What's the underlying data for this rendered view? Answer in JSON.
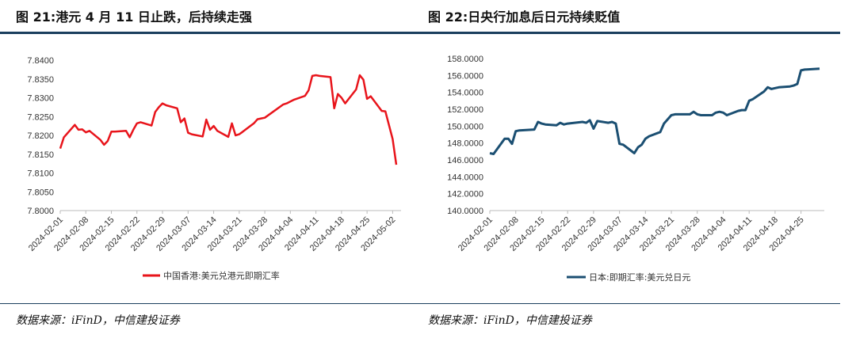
{
  "charts_titles": {
    "left": "图 21:港元 4 月 11 日止跌，后持续走强",
    "right": "图 22:日央行加息后日元持续贬值"
  },
  "sources": {
    "left": "数据来源：iFinD，中信建投证券",
    "right": "数据来源：iFinD，中信建投证券"
  },
  "colors": {
    "hkd": "#e8141b",
    "jpy": "#1b4f72",
    "rule": "#1b3f5e"
  },
  "chart_data": [
    {
      "type": "line",
      "title": "图 21:港元 4 月 11 日止跌，后持续走强",
      "ylim": [
        7.8,
        7.84
      ],
      "yticks": [
        "7.8000",
        "7.8050",
        "7.8100",
        "7.8150",
        "7.8200",
        "7.8250",
        "7.8300",
        "7.8350",
        "7.8400"
      ],
      "xticks": [
        "2024-02-01",
        "2024-02-08",
        "2024-02-15",
        "2024-02-22",
        "2024-02-29",
        "2024-03-07",
        "2024-03-14",
        "2024-03-21",
        "2024-03-28",
        "2024-04-04",
        "2024-04-11",
        "2024-04-18",
        "2024-04-25",
        "2024-05-02"
      ],
      "series": [
        {
          "name": "中国香港:美元兑港元即期汇率",
          "x": [
            "2024-02-01",
            "2024-02-02",
            "2024-02-05",
            "2024-02-06",
            "2024-02-07",
            "2024-02-08",
            "2024-02-09",
            "2024-02-12",
            "2024-02-13",
            "2024-02-14",
            "2024-02-15",
            "2024-02-16",
            "2024-02-19",
            "2024-02-20",
            "2024-02-21",
            "2024-02-22",
            "2024-02-23",
            "2024-02-26",
            "2024-02-27",
            "2024-02-28",
            "2024-02-29",
            "2024-03-01",
            "2024-03-04",
            "2024-03-05",
            "2024-03-06",
            "2024-03-07",
            "2024-03-08",
            "2024-03-11",
            "2024-03-12",
            "2024-03-13",
            "2024-03-14",
            "2024-03-15",
            "2024-03-18",
            "2024-03-19",
            "2024-03-20",
            "2024-03-21",
            "2024-03-22",
            "2024-03-25",
            "2024-03-26",
            "2024-03-27",
            "2024-03-28",
            "2024-04-02",
            "2024-04-03",
            "2024-04-04",
            "2024-04-05",
            "2024-04-08",
            "2024-04-09",
            "2024-04-10",
            "2024-04-11",
            "2024-04-12",
            "2024-04-15",
            "2024-04-16",
            "2024-04-17",
            "2024-04-18",
            "2024-04-19",
            "2024-04-22",
            "2024-04-23",
            "2024-04-24",
            "2024-04-25",
            "2024-04-26",
            "2024-04-29",
            "2024-04-30",
            "2024-05-02",
            "2024-05-03"
          ],
          "values": [
            7.8165,
            7.8195,
            7.8228,
            7.8215,
            7.8216,
            7.8208,
            7.8212,
            7.8188,
            7.8175,
            7.8185,
            7.821,
            7.821,
            7.8212,
            7.8195,
            7.8215,
            7.8232,
            7.8235,
            7.8226,
            7.8262,
            7.8275,
            7.8285,
            7.828,
            7.8272,
            7.8235,
            7.8245,
            7.8207,
            7.8203,
            7.8197,
            7.8242,
            7.8215,
            7.8225,
            7.8212,
            7.8196,
            7.8232,
            7.82,
            7.8203,
            7.821,
            7.8232,
            7.8243,
            7.8245,
            7.8247,
            7.8282,
            7.8285,
            7.829,
            7.8295,
            7.8305,
            7.832,
            7.8358,
            7.836,
            7.8358,
            7.8355,
            7.8272,
            7.831,
            7.83,
            7.8285,
            7.8322,
            7.836,
            7.8348,
            7.8297,
            7.8304,
            7.8265,
            7.8264,
            7.819,
            7.8122
          ]
        }
      ]
    },
    {
      "type": "line",
      "title": "图 22:日央行加息后日元持续贬值",
      "ylim": [
        140,
        158
      ],
      "yticks": [
        "140.0000",
        "142.0000",
        "144.0000",
        "146.0000",
        "148.0000",
        "150.0000",
        "152.0000",
        "154.0000",
        "156.0000",
        "158.0000"
      ],
      "xticks": [
        "2024-02-01",
        "2024-02-08",
        "2024-02-15",
        "2024-02-22",
        "2024-02-29",
        "2024-03-07",
        "2024-03-14",
        "2024-03-21",
        "2024-03-28",
        "2024-04-04",
        "2024-04-11",
        "2024-04-18",
        "2024-04-25"
      ],
      "series": [
        {
          "name": "日本:即期汇率:美元兑日元",
          "x": [
            "2024-02-01",
            "2024-02-02",
            "2024-02-05",
            "2024-02-06",
            "2024-02-07",
            "2024-02-08",
            "2024-02-09",
            "2024-02-13",
            "2024-02-14",
            "2024-02-15",
            "2024-02-16",
            "2024-02-19",
            "2024-02-20",
            "2024-02-21",
            "2024-02-22",
            "2024-02-26",
            "2024-02-27",
            "2024-02-28",
            "2024-02-29",
            "2024-03-01",
            "2024-03-04",
            "2024-03-05",
            "2024-03-06",
            "2024-03-07",
            "2024-03-08",
            "2024-03-11",
            "2024-03-12",
            "2024-03-13",
            "2024-03-14",
            "2024-03-15",
            "2024-03-18",
            "2024-03-19",
            "2024-03-21",
            "2024-03-22",
            "2024-03-25",
            "2024-03-26",
            "2024-03-27",
            "2024-03-28",
            "2024-03-29",
            "2024-04-01",
            "2024-04-02",
            "2024-04-03",
            "2024-04-04",
            "2024-04-05",
            "2024-04-08",
            "2024-04-09",
            "2024-04-10",
            "2024-04-11",
            "2024-04-12",
            "2024-04-15",
            "2024-04-16",
            "2024-04-17",
            "2024-04-18",
            "2024-04-19",
            "2024-04-22",
            "2024-04-23",
            "2024-04-24",
            "2024-04-25",
            "2024-04-26",
            "2024-04-30"
          ],
          "values": [
            146.8,
            146.7,
            148.5,
            148.5,
            147.9,
            149.4,
            149.5,
            149.6,
            150.5,
            150.3,
            150.2,
            150.1,
            150.4,
            150.2,
            150.3,
            150.5,
            150.4,
            150.7,
            149.7,
            150.6,
            150.4,
            150.5,
            150.3,
            147.9,
            147.8,
            146.8,
            147.5,
            147.8,
            148.5,
            148.8,
            149.3,
            150.3,
            151.3,
            151.4,
            151.4,
            151.4,
            151.7,
            151.4,
            151.3,
            151.3,
            151.6,
            151.7,
            151.6,
            151.3,
            151.8,
            151.9,
            151.9,
            153.0,
            153.2,
            154.1,
            154.6,
            154.4,
            154.5,
            154.6,
            154.7,
            154.8,
            155.0,
            156.6,
            156.7,
            156.8
          ]
        }
      ]
    }
  ]
}
